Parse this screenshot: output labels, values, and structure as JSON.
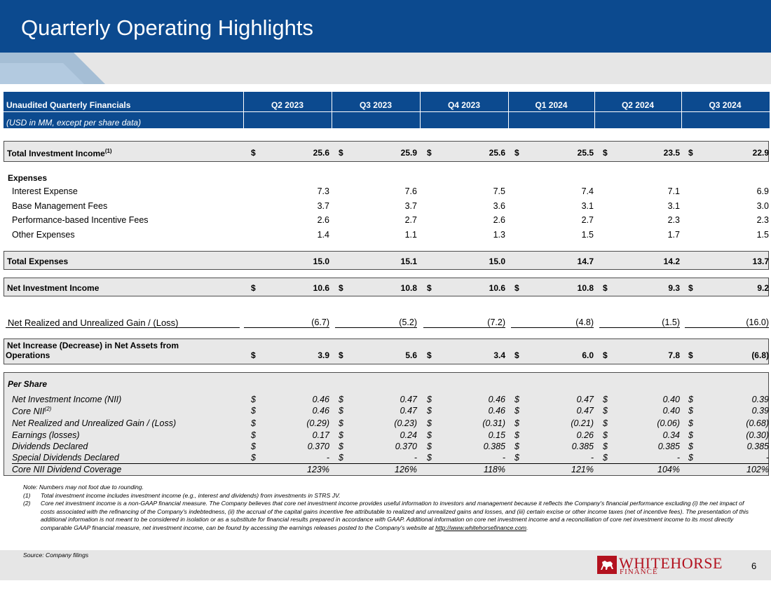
{
  "title": "Quarterly Operating Highlights",
  "table": {
    "header_label": "Unaudited Quarterly Financials",
    "sub_label": "(USD in MM, except per share data)",
    "quarters": [
      "Q2 2023",
      "Q3 2023",
      "Q4 2023",
      "Q1 2024",
      "Q2 2024",
      "Q3 2024"
    ],
    "dollar": "$",
    "total_investment_income": {
      "label": "Total Investment Income",
      "sup": "(1)",
      "values": [
        "25.6",
        "25.9",
        "25.6",
        "25.5",
        "23.5",
        "22.9"
      ]
    },
    "expenses_heading": "Expenses",
    "expenses": [
      {
        "label": "Interest Expense",
        "values": [
          "7.3",
          "7.6",
          "7.5",
          "7.4",
          "7.1",
          "6.9"
        ]
      },
      {
        "label": "Base Management Fees",
        "values": [
          "3.7",
          "3.7",
          "3.6",
          "3.1",
          "3.1",
          "3.0"
        ]
      },
      {
        "label": "Performance-based Incentive Fees",
        "values": [
          "2.6",
          "2.7",
          "2.6",
          "2.7",
          "2.3",
          "2.3"
        ]
      },
      {
        "label": "Other Expenses",
        "values": [
          "1.4",
          "1.1",
          "1.3",
          "1.5",
          "1.7",
          "1.5"
        ]
      }
    ],
    "total_expenses": {
      "label": "Total Expenses",
      "values": [
        "15.0",
        "15.1",
        "15.0",
        "14.7",
        "14.2",
        "13.7"
      ]
    },
    "net_investment_income": {
      "label": "Net Investment Income",
      "values": [
        "10.6",
        "10.8",
        "10.6",
        "10.8",
        "9.3",
        "9.2"
      ]
    },
    "net_realized": {
      "label": "Net Realized and Unrealized Gain / (Loss)",
      "values": [
        "(6.7)",
        "(5.2)",
        "(7.2)",
        "(4.8)",
        "(1.5)",
        "(16.0)"
      ]
    },
    "net_increase": {
      "label_line1": "Net Increase (Decrease) in Net Assets from",
      "label_line2": "Operations",
      "values": [
        "3.9",
        "5.6",
        "3.4",
        "6.0",
        "7.8",
        "(6.8)"
      ]
    },
    "per_share_heading": "Per Share",
    "per_share": [
      {
        "label": "Net Investment Income (NII)",
        "sup": "",
        "dollars": true,
        "values": [
          "0.46",
          "0.47",
          "0.46",
          "0.47",
          "0.40",
          "0.39"
        ]
      },
      {
        "label": "Core NII",
        "sup": "(2)",
        "dollars": true,
        "values": [
          "0.46",
          "0.47",
          "0.46",
          "0.47",
          "0.40",
          "0.39"
        ]
      },
      {
        "label": "Net Realized and Unrealized Gain / (Loss)",
        "sup": "",
        "dollars": true,
        "values": [
          "(0.29)",
          "(0.23)",
          "(0.31)",
          "(0.21)",
          "(0.06)",
          "(0.68)"
        ]
      },
      {
        "label": "Earnings (losses)",
        "sup": "",
        "dollars": true,
        "values": [
          "0.17",
          "0.24",
          "0.15",
          "0.26",
          "0.34",
          "(0.30)"
        ]
      },
      {
        "label": "Dividends Declared",
        "sup": "",
        "dollars": true,
        "values": [
          "0.370",
          "0.370",
          "0.385",
          "0.385",
          "0.385",
          "0.385"
        ]
      },
      {
        "label": "Special Dividends Declared",
        "sup": "",
        "dollars": true,
        "values": [
          "-",
          "-",
          "-",
          "-",
          "-",
          "-"
        ]
      },
      {
        "label": "Core NII Dividend Coverage",
        "sup": "",
        "dollars": false,
        "values": [
          "123%",
          "126%",
          "118%",
          "121%",
          "104%",
          "102%"
        ]
      }
    ]
  },
  "notes": {
    "rounding": "Note: Numbers may not foot due to rounding.",
    "items": [
      {
        "num": "(1)",
        "text": "Total investment income includes investment income (e.g., interest and dividends) from investments in STRS JV."
      },
      {
        "num": "(2)",
        "text": "Core net investment income is a non-GAAP financial measure. The Company believes that core net investment income provides useful information to investors and management because it reflects the Company's financial performance excluding (i) the net impact of costs associated with the refinancing of the Company's indebtedness, (ii) the accrual of the capital gains incentive fee attributable to realized and unrealized gains and losses, and (iii) certain excise or other income taxes (net of incentive fees). The presentation of this additional information is not meant to be considered in isolation or as a substitute for financial results prepared in accordance with GAAP. Additional information on core net investment income and a reconciliation of core net investment income to its most directly comparable GAAP financial measure, net investment income, can be found by accessing the earnings releases posted to the Company's website at ",
        "link": "http://www.whitehorsefinance.com",
        "tail": "."
      }
    ]
  },
  "source": "Source: Company filings",
  "logo": {
    "word1": "WHITEHORSE",
    "word2": "FINANCE",
    "icon": "horse-icon",
    "color": "#b3121f"
  },
  "page_number": "6",
  "colors": {
    "brand_blue": "#0c4a8f",
    "band_gray": "#e6e6e6"
  }
}
